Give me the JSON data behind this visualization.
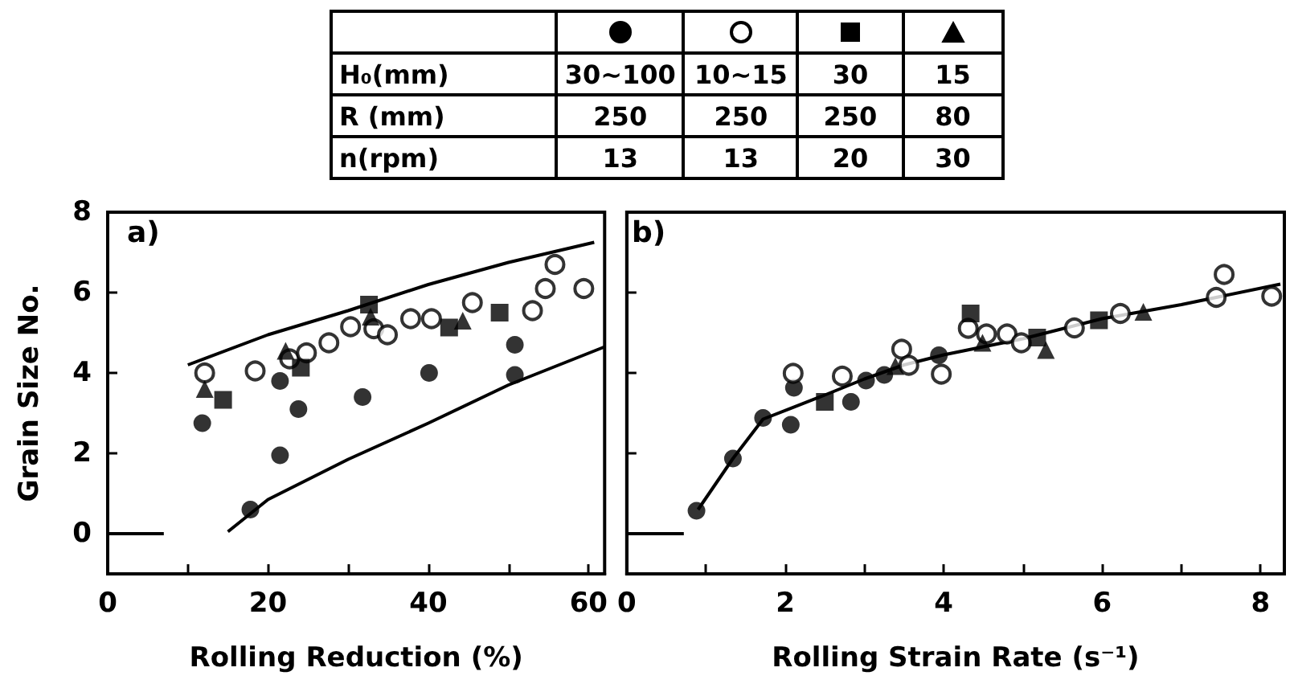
{
  "chart_data": [
    {
      "type": "other",
      "annotations": [
        "H₀(mm)",
        "30~100",
        "10~15",
        "30",
        "15",
        "R (mm)",
        "250",
        "250",
        "250",
        "80",
        "n(rpm)",
        "13",
        "13",
        "20",
        "30"
      ]
    },
    {
      "type": "scatter",
      "ylabel": "Grain Size No.",
      "xlabel": "Rolling Reduction (%)",
      "annotations": [
        "a)"
      ],
      "xlim": [
        0,
        62
      ],
      "xticks": [
        0,
        {
          "value": 10,
          "label": null
        },
        20,
        {
          "value": 30,
          "label": null
        },
        40,
        {
          "value": 50,
          "label": null
        },
        60
      ],
      "ylim": [
        -1,
        8
      ],
      "yticks": [
        0,
        2,
        4,
        6,
        8
      ],
      "grid": false,
      "series": [
        {
          "type": "scatter",
          "marker": "circle",
          "color": "#000000",
          "x": [
            11.8,
            21.5,
            21.5,
            23.8,
            17.8,
            31.8,
            40.1,
            50.8,
            50.8
          ],
          "values": [
            2.75,
            3.8,
            1.95,
            3.1,
            0.6,
            3.4,
            4.0,
            4.7,
            3.95
          ]
        },
        {
          "type": "scatter",
          "marker": "circle",
          "color": "#ffffff",
          "x": [
            12.1,
            18.4,
            22.7,
            24.8,
            27.6,
            30.3,
            33.2,
            34.9,
            37.8,
            40.4,
            45.5,
            53.0,
            54.6,
            55.8,
            59.4
          ],
          "values": [
            4.0,
            4.05,
            4.35,
            4.5,
            4.75,
            5.15,
            5.1,
            4.95,
            5.35,
            5.35,
            5.75,
            5.55,
            6.1,
            6.7,
            6.1
          ]
        },
        {
          "type": "scatter",
          "marker": "square",
          "color": "#000000",
          "x": [
            14.4,
            24.1,
            32.6,
            42.6,
            48.9
          ],
          "values": [
            3.33,
            4.13,
            5.7,
            5.13,
            5.5
          ]
        },
        {
          "type": "scatter",
          "marker": "triangle",
          "color": "#000000",
          "x": [
            12.1,
            22.2,
            32.8,
            44.3
          ],
          "values": [
            3.6,
            4.55,
            5.4,
            5.3
          ]
        },
        {
          "type": "line",
          "marker": "none",
          "line_style": "solid",
          "color": "#000000",
          "x": [
            10,
            20,
            30,
            40,
            50,
            60.7
          ],
          "values": [
            4.2,
            4.95,
            5.55,
            6.2,
            6.75,
            7.25
          ]
        },
        {
          "type": "line",
          "marker": "none",
          "line_style": "solid",
          "color": "#000000",
          "x": [
            15,
            20,
            30,
            40,
            50,
            62
          ],
          "values": [
            0.05,
            0.85,
            1.85,
            2.75,
            3.7,
            4.65
          ]
        },
        {
          "type": "line",
          "marker": "none",
          "line_style": "solid",
          "color": "#000000",
          "x": [
            0,
            7
          ],
          "values": [
            0,
            0
          ]
        }
      ]
    },
    {
      "type": "scatter",
      "xlabel": "Rolling Strain Rate (s⁻¹)",
      "annotations": [
        "b)"
      ],
      "tick_labels": "x",
      "xlim": [
        0,
        8.3
      ],
      "xticks": [
        0,
        {
          "value": 1,
          "label": null
        },
        2,
        {
          "value": 3,
          "label": null
        },
        4,
        {
          "value": 5,
          "label": null
        },
        6,
        {
          "value": 7,
          "label": null
        },
        8
      ],
      "ylim": [
        -1,
        8
      ],
      "yticks": [
        0,
        2,
        4,
        6,
        8
      ],
      "grid": false,
      "series": [
        {
          "type": "scatter",
          "marker": "circle",
          "color": "#000000",
          "x": [
            0.88,
            1.34,
            1.72,
            2.07,
            2.11,
            2.83,
            3.02,
            3.25,
            3.94
          ],
          "values": [
            0.57,
            1.87,
            2.88,
            2.71,
            3.63,
            3.28,
            3.81,
            3.95,
            4.44
          ]
        },
        {
          "type": "scatter",
          "marker": "circle",
          "color": "#ffffff",
          "x": [
            2.1,
            2.72,
            3.47,
            3.56,
            3.97,
            4.31,
            4.54,
            4.8,
            4.98,
            5.65,
            6.23,
            7.44,
            7.54,
            8.14
          ],
          "values": [
            3.99,
            3.92,
            4.59,
            4.19,
            3.97,
            5.11,
            4.97,
            4.97,
            4.75,
            5.12,
            5.48,
            5.88,
            6.45,
            5.91
          ]
        },
        {
          "type": "scatter",
          "marker": "square",
          "color": "#000000",
          "x": [
            2.5,
            4.34,
            5.18,
            5.96
          ],
          "values": [
            3.28,
            5.48,
            4.88,
            5.31
          ]
        },
        {
          "type": "scatter",
          "marker": "triangle",
          "color": "#000000",
          "x": [
            3.39,
            4.49,
            5.29,
            6.52
          ],
          "values": [
            4.17,
            4.75,
            4.57,
            5.52
          ]
        },
        {
          "type": "line",
          "marker": "none",
          "line_style": "solid",
          "color": "#000000",
          "x": [
            0.9,
            1.34,
            1.72,
            2.5,
            3.0,
            3.5,
            4.0,
            5.0,
            6.0,
            7.0,
            8.25
          ],
          "values": [
            0.6,
            1.87,
            2.85,
            3.45,
            3.85,
            4.2,
            4.45,
            4.85,
            5.35,
            5.7,
            6.21
          ]
        },
        {
          "type": "line",
          "marker": "none",
          "line_style": "solid",
          "color": "#000000",
          "x": [
            0,
            0.72
          ],
          "values": [
            0,
            0
          ]
        }
      ]
    }
  ]
}
